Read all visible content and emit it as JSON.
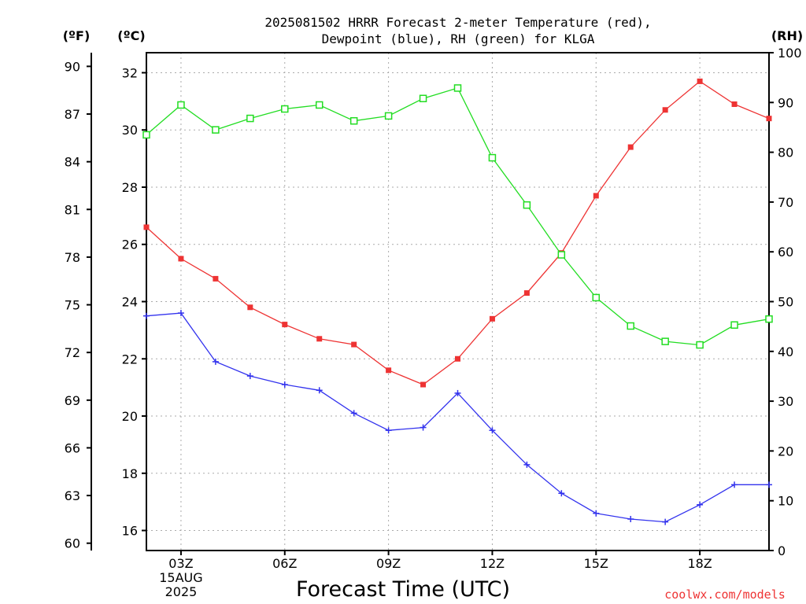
{
  "chart_data": {
    "type": "line",
    "title_line1": "2025081502 HRRR Forecast 2-meter Temperature (red),",
    "title_line2": "Dewpoint (blue), RH (green) for KLGA",
    "xlabel": "Forecast Time (UTC)",
    "unit_left_f": "(ºF)",
    "unit_left_c": "(ºC)",
    "unit_right": "(RH)",
    "watermark": "coolwx.com/models",
    "x_hours": [
      2,
      3,
      4,
      5,
      6,
      7,
      8,
      9,
      10,
      11,
      12,
      13,
      14,
      15,
      16,
      17,
      18,
      19,
      20
    ],
    "x_ticks": [
      {
        "hour": 3,
        "lines": [
          "03Z",
          "15AUG",
          "2025"
        ]
      },
      {
        "hour": 6,
        "lines": [
          "06Z"
        ]
      },
      {
        "hour": 9,
        "lines": [
          "09Z"
        ]
      },
      {
        "hour": 12,
        "lines": [
          "12Z"
        ]
      },
      {
        "hour": 15,
        "lines": [
          "15Z"
        ]
      },
      {
        "hour": 18,
        "lines": [
          "18Z"
        ]
      }
    ],
    "xlim": [
      2,
      20
    ],
    "celsius_axis": {
      "ylim": [
        15.3,
        32.7
      ],
      "ticks": [
        16,
        18,
        20,
        22,
        24,
        26,
        28,
        30,
        32
      ]
    },
    "fahrenheit_axis": {
      "ticks": [
        60,
        63,
        66,
        69,
        72,
        75,
        78,
        81,
        84,
        87,
        90
      ]
    },
    "rh_axis": {
      "ylim": [
        0,
        100
      ],
      "ticks": [
        0,
        10,
        20,
        30,
        40,
        50,
        60,
        70,
        80,
        90,
        100
      ]
    },
    "grid": true,
    "series": [
      {
        "name": "Temperature",
        "color": "#ee3333",
        "marker": "filled-square",
        "axis": "celsius",
        "values": [
          26.6,
          25.5,
          24.8,
          23.8,
          23.2,
          22.7,
          22.5,
          21.6,
          21.1,
          22.0,
          23.4,
          24.3,
          25.7,
          27.7,
          29.4,
          30.7,
          31.7,
          30.9,
          30.4
        ]
      },
      {
        "name": "Dewpoint",
        "color": "#3333ee",
        "marker": "plus",
        "axis": "celsius",
        "values": [
          23.5,
          23.6,
          21.9,
          21.4,
          21.1,
          20.9,
          20.1,
          19.5,
          19.6,
          20.8,
          19.5,
          18.3,
          17.3,
          16.6,
          16.4,
          16.3,
          16.9,
          17.6,
          17.6
        ]
      },
      {
        "name": "RH",
        "color": "#22dd22",
        "marker": "open-square",
        "axis": "rh",
        "values": [
          83.5,
          89.5,
          84.5,
          86.8,
          88.7,
          89.5,
          86.3,
          87.3,
          90.8,
          92.9,
          78.9,
          69.4,
          59.4,
          50.8,
          45.1,
          42.0,
          41.3,
          45.3,
          46.5
        ]
      }
    ]
  }
}
